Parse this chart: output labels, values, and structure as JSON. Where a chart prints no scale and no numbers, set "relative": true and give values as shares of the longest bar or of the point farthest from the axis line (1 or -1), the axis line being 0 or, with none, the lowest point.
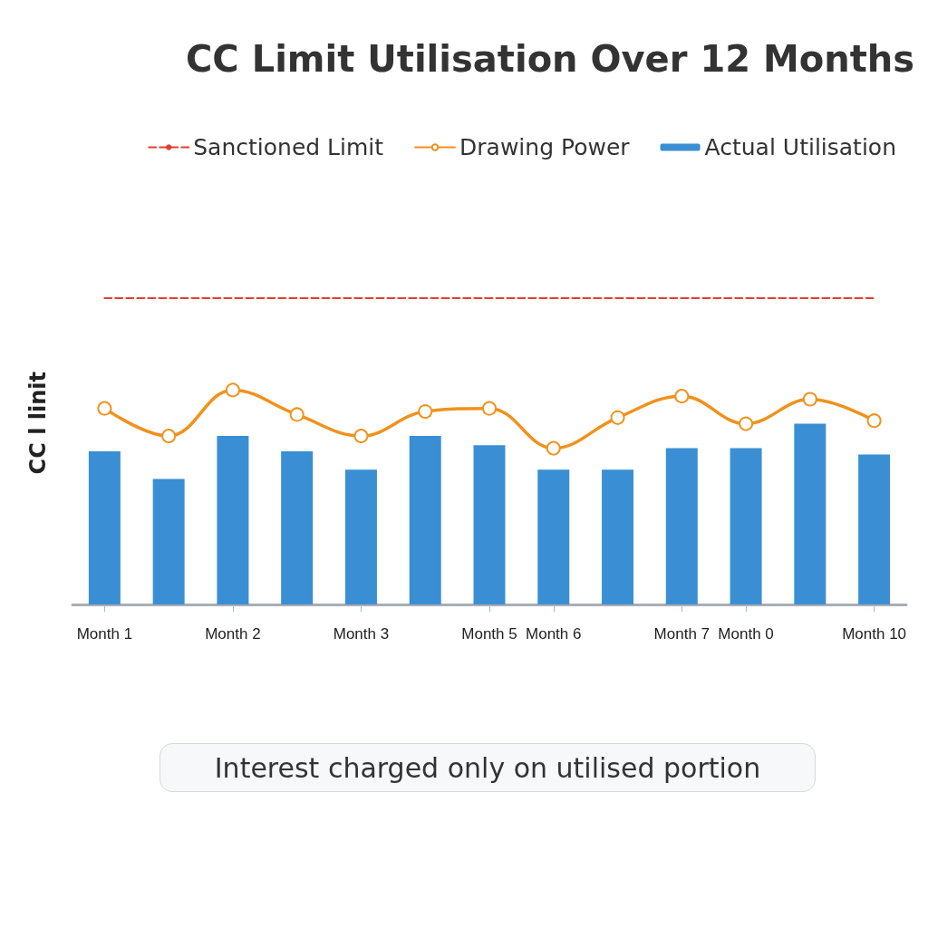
{
  "chart_data": {
    "type": "bar",
    "title": "CC Limit Utilisation Over 12 Months",
    "ylabel": "CC l linit",
    "categories": [
      "Month 1",
      null,
      "Month 2",
      null,
      "Month 3",
      null,
      "Month 5",
      "Month 6",
      null,
      "Month 7",
      "Month 0",
      null,
      "Month 10"
    ],
    "relative": true,
    "legend": "top right",
    "series": [
      {
        "name": "Sanctioned Limit",
        "type": "line",
        "color": "#e0402f",
        "line_style": "dashed",
        "marker": "none",
        "values": [
          1,
          1,
          1,
          1,
          1,
          1,
          1,
          1,
          1,
          1,
          1,
          1,
          1
        ]
      },
      {
        "name": "Drawing Power",
        "type": "line",
        "color": "#f0921c",
        "line_style": "solid",
        "marker": "circle",
        "values": [
          0.64,
          0.55,
          0.7,
          0.62,
          0.55,
          0.63,
          0.64,
          0.51,
          0.61,
          0.68,
          0.59,
          0.67,
          0.6
        ]
      },
      {
        "name": "Actual Utilisation",
        "color": "#3a8fd4",
        "values": [
          0.5,
          0.41,
          0.55,
          0.5,
          0.44,
          0.55,
          0.52,
          0.44,
          0.44,
          0.51,
          0.51,
          0.59,
          0.49
        ]
      }
    ],
    "annotations": [
      "Interest charged only on utilised portion"
    ]
  }
}
